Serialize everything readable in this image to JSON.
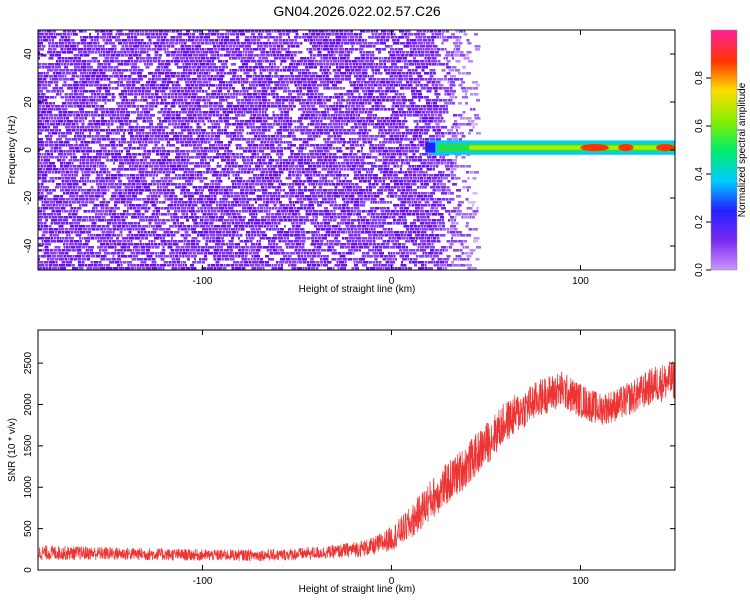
{
  "title": "GN04.2026.022.02.57.C26",
  "colors": {
    "snr_trace": "#ee3333",
    "spectrogram_noise": "#7a2af0",
    "axes": "#000000"
  },
  "chart_data": [
    {
      "type": "heatmap",
      "name": "spectrogram",
      "xlabel": "Height of straight line (km)",
      "ylabel": "Frequency (Hz)",
      "xlim": [
        -187,
        150
      ],
      "ylim": [
        -50,
        50
      ],
      "xticks": [
        -100,
        0,
        100
      ],
      "yticks": [
        -40,
        -20,
        0,
        20,
        40
      ],
      "noise_region_x": [
        -187,
        45
      ],
      "signal_band": {
        "x_start": 20,
        "x_end": 150,
        "center_freq_hz": 1,
        "half_width_hz": 3
      },
      "colorbar": {
        "label": "Normalized spectral amplitude",
        "range": [
          0.0,
          1.0
        ],
        "ticks": [
          "0.0",
          "0.2",
          "0.4",
          "0.6",
          "0.8"
        ],
        "tick_values": [
          0.0,
          0.2,
          0.4,
          0.6,
          0.8
        ]
      }
    },
    {
      "type": "line",
      "name": "snr",
      "xlabel": "Height of straight line (km)",
      "ylabel": "SNR (10 * v/v)",
      "xlim": [
        -187,
        150
      ],
      "ylim": [
        0,
        2900
      ],
      "xticks": [
        -100,
        0,
        100
      ],
      "yticks": [
        0,
        500,
        1000,
        1500,
        2000,
        2500
      ],
      "envelope_x": [
        -187,
        -150,
        -100,
        -60,
        -30,
        -10,
        0,
        10,
        20,
        30,
        40,
        50,
        60,
        70,
        80,
        90,
        100,
        110,
        120,
        130,
        140,
        150
      ],
      "envelope_y": [
        210,
        200,
        180,
        180,
        220,
        280,
        380,
        560,
        830,
        1050,
        1270,
        1520,
        1780,
        1950,
        2100,
        2180,
        2050,
        1940,
        2000,
        2120,
        2250,
        2300
      ],
      "noise_amplitude": [
        90,
        80,
        70,
        70,
        80,
        110,
        150,
        200,
        250,
        260,
        260,
        260,
        250,
        240,
        230,
        230,
        210,
        200,
        200,
        210,
        230,
        240
      ]
    }
  ]
}
